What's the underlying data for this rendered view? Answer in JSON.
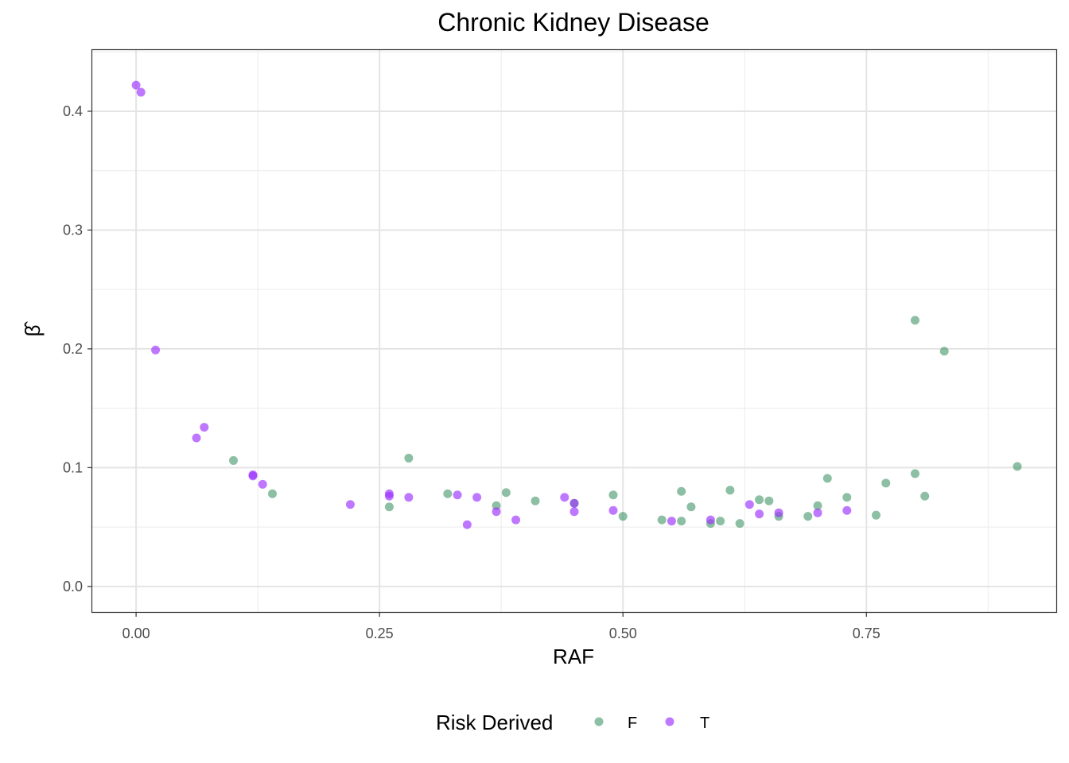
{
  "chart_data": {
    "type": "scatter",
    "title": "Chronic Kidney Disease",
    "xlabel": "RAF",
    "ylabel": "β̂",
    "xlim": [
      -0.045,
      0.945
    ],
    "ylim": [
      -0.0215,
      0.4515
    ],
    "x_ticks": [
      {
        "value": 0.0,
        "label": "0.00"
      },
      {
        "value": 0.25,
        "label": "0.25"
      },
      {
        "value": 0.5,
        "label": "0.50"
      },
      {
        "value": 0.75,
        "label": "0.75"
      }
    ],
    "y_ticks": [
      {
        "value": 0.0,
        "label": "0.0"
      },
      {
        "value": 0.1,
        "label": "0.1"
      },
      {
        "value": 0.2,
        "label": "0.2"
      },
      {
        "value": 0.3,
        "label": "0.3"
      },
      {
        "value": 0.4,
        "label": "0.4"
      }
    ],
    "grid": true,
    "legend": {
      "title": "Risk Derived",
      "placement": "bottom"
    },
    "series": [
      {
        "name": "F",
        "color": "#2E8B57",
        "points": [
          {
            "x": 0.1,
            "y": 0.106
          },
          {
            "x": 0.14,
            "y": 0.078
          },
          {
            "x": 0.26,
            "y": 0.067
          },
          {
            "x": 0.28,
            "y": 0.108
          },
          {
            "x": 0.32,
            "y": 0.078
          },
          {
            "x": 0.37,
            "y": 0.068
          },
          {
            "x": 0.38,
            "y": 0.079
          },
          {
            "x": 0.41,
            "y": 0.072
          },
          {
            "x": 0.45,
            "y": 0.07
          },
          {
            "x": 0.49,
            "y": 0.077
          },
          {
            "x": 0.5,
            "y": 0.059
          },
          {
            "x": 0.54,
            "y": 0.056
          },
          {
            "x": 0.56,
            "y": 0.08
          },
          {
            "x": 0.56,
            "y": 0.055
          },
          {
            "x": 0.57,
            "y": 0.067
          },
          {
            "x": 0.59,
            "y": 0.053
          },
          {
            "x": 0.6,
            "y": 0.055
          },
          {
            "x": 0.61,
            "y": 0.081
          },
          {
            "x": 0.62,
            "y": 0.053
          },
          {
            "x": 0.64,
            "y": 0.073
          },
          {
            "x": 0.65,
            "y": 0.072
          },
          {
            "x": 0.66,
            "y": 0.059
          },
          {
            "x": 0.69,
            "y": 0.059
          },
          {
            "x": 0.7,
            "y": 0.068
          },
          {
            "x": 0.71,
            "y": 0.091
          },
          {
            "x": 0.73,
            "y": 0.075
          },
          {
            "x": 0.76,
            "y": 0.06
          },
          {
            "x": 0.77,
            "y": 0.087
          },
          {
            "x": 0.8,
            "y": 0.224
          },
          {
            "x": 0.8,
            "y": 0.095
          },
          {
            "x": 0.81,
            "y": 0.076
          },
          {
            "x": 0.83,
            "y": 0.198
          },
          {
            "x": 0.905,
            "y": 0.101
          }
        ]
      },
      {
        "name": "T",
        "color": "#9B30FF",
        "points": [
          {
            "x": 0.0,
            "y": 0.422
          },
          {
            "x": 0.005,
            "y": 0.416
          },
          {
            "x": 0.02,
            "y": 0.199
          },
          {
            "x": 0.062,
            "y": 0.125
          },
          {
            "x": 0.07,
            "y": 0.134
          },
          {
            "x": 0.12,
            "y": 0.093
          },
          {
            "x": 0.12,
            "y": 0.094
          },
          {
            "x": 0.13,
            "y": 0.086
          },
          {
            "x": 0.22,
            "y": 0.069
          },
          {
            "x": 0.26,
            "y": 0.078
          },
          {
            "x": 0.26,
            "y": 0.076
          },
          {
            "x": 0.28,
            "y": 0.075
          },
          {
            "x": 0.33,
            "y": 0.077
          },
          {
            "x": 0.34,
            "y": 0.052
          },
          {
            "x": 0.35,
            "y": 0.075
          },
          {
            "x": 0.37,
            "y": 0.063
          },
          {
            "x": 0.39,
            "y": 0.056
          },
          {
            "x": 0.44,
            "y": 0.075
          },
          {
            "x": 0.45,
            "y": 0.063
          },
          {
            "x": 0.45,
            "y": 0.07
          },
          {
            "x": 0.49,
            "y": 0.064
          },
          {
            "x": 0.55,
            "y": 0.055
          },
          {
            "x": 0.59,
            "y": 0.056
          },
          {
            "x": 0.63,
            "y": 0.069
          },
          {
            "x": 0.64,
            "y": 0.061
          },
          {
            "x": 0.66,
            "y": 0.062
          },
          {
            "x": 0.7,
            "y": 0.062
          },
          {
            "x": 0.73,
            "y": 0.064
          }
        ]
      }
    ]
  }
}
